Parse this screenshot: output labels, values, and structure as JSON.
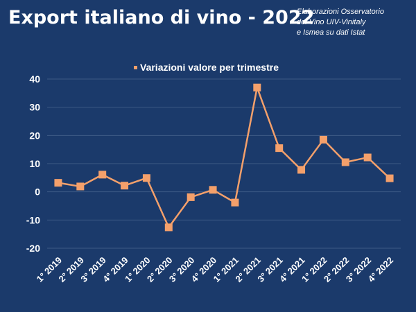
{
  "header": {
    "title": "Export italiano di vino - 2022",
    "source_lines": [
      "Elaborazioni Osservatorio",
      "del Vino UIV-Vinitaly",
      " e Ismea su dati Istat"
    ]
  },
  "colors": {
    "background": "#1b3a6b",
    "series": "#f4a06b",
    "grid": "#3e5a86",
    "text": "#ffffff"
  },
  "chart_data": {
    "type": "line",
    "title": "",
    "xlabel": "",
    "ylabel": "",
    "legend_placement": "top-center",
    "grid": true,
    "ylim": [
      -20,
      40
    ],
    "yticks": [
      -20,
      -10,
      0,
      10,
      20,
      30,
      40
    ],
    "categories": [
      "1° 2019",
      "2° 2019",
      "3° 2019",
      "4° 2019",
      "1° 2020",
      "2° 2020",
      "3° 2020",
      "4° 2020",
      "1° 2021",
      "2° 2021",
      "3° 2021",
      "4° 2021",
      "1° 2022",
      "2° 2022",
      "3° 2022",
      "4° 2022"
    ],
    "series": [
      {
        "name": "Variazioni valore per trimestre",
        "values": [
          3.2,
          1.9,
          6.1,
          2.2,
          4.9,
          -12.6,
          -1.9,
          0.7,
          -3.8,
          37.0,
          15.5,
          7.8,
          18.5,
          10.5,
          12.2,
          4.8
        ]
      }
    ]
  }
}
